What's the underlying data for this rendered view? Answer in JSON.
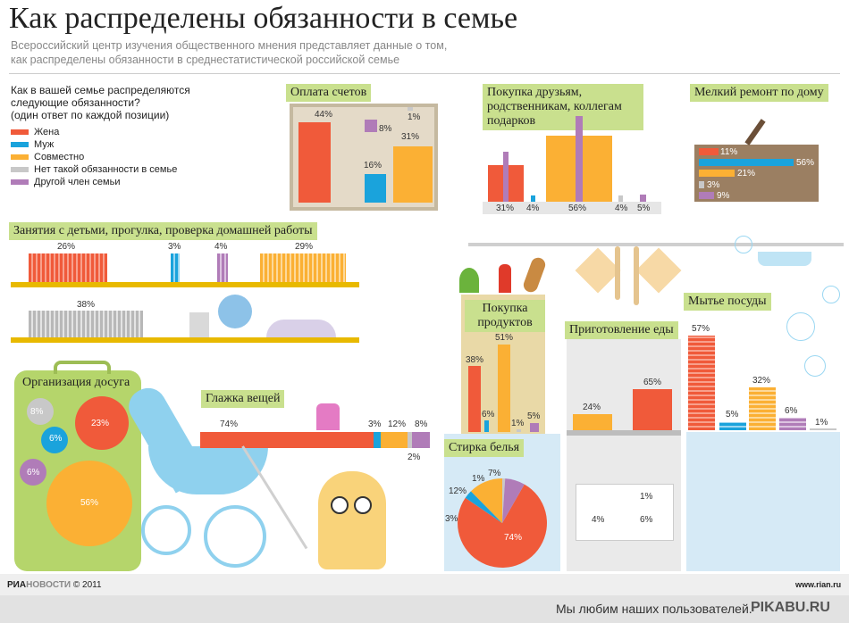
{
  "title": "Как распределены обязанности в семье",
  "subtitle": [
    "Всероссийский центр изучения общественного мнения представляет данные о том,",
    "как распределены обязанности в среднестатистической российской семье"
  ],
  "question": [
    "Как в вашей семье распределяются",
    "следующие обязанности?",
    "(один ответ по каждой позиции)"
  ],
  "legend": [
    {
      "label": "Жена",
      "color": "#f05a3a"
    },
    {
      "label": "Муж",
      "color": "#1aa3dc"
    },
    {
      "label": "Совместно",
      "color": "#fbb034"
    },
    {
      "label": "Нет такой обязанности в семье",
      "color": "#c8c8c8"
    },
    {
      "label": "Другой член семьи",
      "color": "#b07cb8"
    }
  ],
  "chart_data": [
    {
      "type": "bar",
      "title": "Оплата счетов",
      "categories": [
        "Жена",
        "Муж",
        "Совместно",
        "Нет такой обязанности в семье",
        "Другой член семьи"
      ],
      "values": [
        44,
        16,
        31,
        1,
        8
      ],
      "labels": [
        "44%",
        "16%",
        "31%",
        "1%",
        "8%"
      ]
    },
    {
      "type": "bar",
      "title": "Покупка друзьям, родственникам, коллегам подарков",
      "categories": [
        "Жена",
        "Муж",
        "Совместно",
        "Нет такой обязанности в семье",
        "Другой член семьи"
      ],
      "values": [
        31,
        4,
        56,
        4,
        5
      ],
      "labels": [
        "31%",
        "4%",
        "56%",
        "4%",
        "5%"
      ]
    },
    {
      "type": "bar",
      "title": "Мелкий ремонт по дому",
      "categories": [
        "Жена",
        "Муж",
        "Совместно",
        "Нет такой обязанности в семье",
        "Другой член семьи"
      ],
      "values": [
        11,
        56,
        21,
        3,
        9
      ],
      "labels": [
        "11%",
        "56%",
        "21%",
        "3%",
        "9%"
      ]
    },
    {
      "type": "bar",
      "title": "Занятия с детьми, прогулка, проверка домашней работы",
      "categories": [
        "Жена",
        "Муж",
        "Совместно",
        "Нет такой обязанности в семье",
        "Другой член семьи"
      ],
      "values": [
        26,
        3,
        29,
        38,
        4
      ],
      "labels": [
        "26%",
        "3%",
        "29%",
        "38%",
        "4%"
      ]
    },
    {
      "type": "pie",
      "title": "Организация досуга",
      "categories": [
        "Жена",
        "Муж",
        "Совместно",
        "Нет такой обязанности в семье",
        "Другой член семьи"
      ],
      "values": [
        23,
        6,
        56,
        8,
        6
      ],
      "labels": [
        "23%",
        "6%",
        "56%",
        "8%",
        "6%"
      ]
    },
    {
      "type": "bar",
      "title": "Глажка вещей",
      "categories": [
        "Жена",
        "Муж",
        "Совместно",
        "Нет такой обязанности в семье",
        "Другой член семьи"
      ],
      "values": [
        74,
        3,
        12,
        2,
        8
      ],
      "labels": [
        "74%",
        "3%",
        "12%",
        "2%",
        "8%"
      ]
    },
    {
      "type": "bar",
      "title": "Покупка продуктов",
      "categories": [
        "Жена",
        "Муж",
        "Совместно",
        "Нет такой обязанности в семье",
        "Другой член семьи"
      ],
      "values": [
        38,
        6,
        51,
        1,
        5
      ],
      "labels": [
        "38%",
        "6%",
        "51%",
        "1%",
        "5%"
      ]
    },
    {
      "type": "bar",
      "title": "Приготовление еды",
      "categories": [
        "Жена",
        "Муж",
        "Совместно",
        "Нет такой обязанности в семье",
        "Другой член семьи"
      ],
      "values": [
        65,
        4,
        24,
        1,
        6
      ],
      "labels": [
        "65%",
        "4%",
        "24%",
        "1%",
        "6%"
      ]
    },
    {
      "type": "pie",
      "title": "Стирка белья",
      "categories": [
        "Жена",
        "Муж",
        "Совместно",
        "Нет такой обязанности в семье",
        "Другой член семьи"
      ],
      "values": [
        74,
        3,
        12,
        1,
        7
      ],
      "labels": [
        "74%",
        "3%",
        "12%",
        "1%",
        "7%"
      ]
    },
    {
      "type": "bar",
      "title": "Мытье посуды",
      "categories": [
        "Жена",
        "Муж",
        "Совместно",
        "Нет такой обязанности в семье",
        "Другой член семьи"
      ],
      "values": [
        57,
        5,
        32,
        1,
        6
      ],
      "labels": [
        "57%",
        "5%",
        "32%",
        "1%",
        "6%"
      ]
    }
  ],
  "footer": {
    "brand_ria": "РИА",
    "brand_novosti": "НОВОСТИ",
    "copyright": "© 2011",
    "url": "www.rian.ru"
  },
  "pikabu": {
    "text": "Мы любим наших пользователей.",
    "logo": "PIKABU.RU"
  }
}
